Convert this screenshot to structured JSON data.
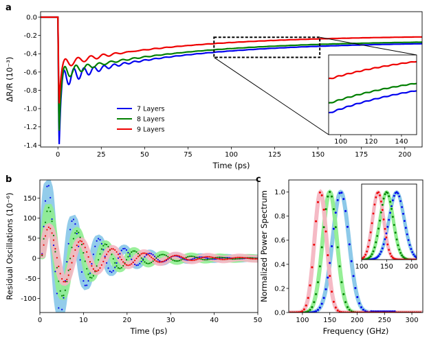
{
  "panels": {
    "a": {
      "letter": "a"
    },
    "b": {
      "letter": "b"
    },
    "c": {
      "letter": "c"
    }
  },
  "chart_data": [
    {
      "panel": "a",
      "type": "line",
      "xlabel": "Time (ps)",
      "ylabel": "ΔR/R (10⁻³)",
      "xlim": [
        -10,
        210
      ],
      "ylim": [
        -1.42,
        0.06
      ],
      "xticks": [
        "0",
        "25",
        "50",
        "75",
        "100",
        "125",
        "150",
        "175",
        "200"
      ],
      "yticks": [
        "0.0",
        "-0.2",
        "-0.4",
        "-0.6",
        "-0.8",
        "-1.0",
        "-1.2",
        "-1.4"
      ],
      "legend_position": "lower-left",
      "series": [
        {
          "name": "7 Layers",
          "color": "#0000ee",
          "min": -1.37,
          "plateau": -0.68,
          "end": -0.27,
          "osc_amp": 0.13,
          "period": 5.8,
          "decay": 14
        },
        {
          "name": "8 Layers",
          "color": "#007f00",
          "min": -1.24,
          "plateau": -0.62,
          "end": -0.255,
          "osc_amp": 0.1,
          "period": 6.6,
          "decay": 14
        },
        {
          "name": "9 Layers",
          "color": "#ee0000",
          "min": -0.94,
          "plateau": -0.52,
          "end": -0.2,
          "osc_amp": 0.07,
          "period": 7.3,
          "decay": 16
        }
      ],
      "zoom_box": {
        "x": [
          90,
          151
        ],
        "y": [
          -0.44,
          -0.22
        ]
      },
      "inset": {
        "xlim": [
          92,
          150
        ],
        "xticks": [
          "100",
          "120",
          "140"
        ]
      }
    },
    {
      "panel": "b",
      "type": "line",
      "xlabel": "Time (ps)",
      "ylabel": "Residual Oscillations (10⁻⁶)",
      "xlim": [
        0,
        50
      ],
      "ylim": [
        -135,
        195
      ],
      "xticks": [
        "0",
        "10",
        "20",
        "30",
        "40",
        "50"
      ],
      "yticks": [
        "150",
        "100",
        "50",
        "0",
        "-50",
        "-100"
      ],
      "series": [
        {
          "name": "7 Layers",
          "color": "#0000ee",
          "band": "#87c6e8",
          "amp": 240,
          "period": 5.85,
          "phase": 1.8,
          "decay": 8.5
        },
        {
          "name": "8 Layers",
          "color": "#007f00",
          "band": "#90ee90",
          "amp": 160,
          "period": 6.55,
          "phase": 1.75,
          "decay": 10
        },
        {
          "name": "9 Layers",
          "color": "#ee0000",
          "band": "#f4b6c2",
          "amp": 95,
          "period": 7.3,
          "phase": 1.6,
          "decay": 12
        }
      ]
    },
    {
      "panel": "c",
      "type": "line",
      "xlabel": "Frequency (GHz)",
      "ylabel": "Normalized Power Spectrum",
      "xlim": [
        75,
        320
      ],
      "ylim": [
        0,
        1.1
      ],
      "xticks": [
        "100",
        "150",
        "200",
        "250",
        "300"
      ],
      "yticks": [
        "0.0",
        "0.2",
        "0.4",
        "0.6",
        "0.8",
        "1.0"
      ],
      "series": [
        {
          "name": "7 Layers",
          "color": "#0000ee",
          "band": "#87c6e8",
          "center": 170,
          "sigma": 15
        },
        {
          "name": "8 Layers",
          "color": "#007f00",
          "band": "#90ee90",
          "center": 150,
          "sigma": 13
        },
        {
          "name": "9 Layers",
          "color": "#ee0000",
          "band": "#f4b6c2",
          "center": 133,
          "sigma": 11
        }
      ],
      "inset": {
        "xlim": [
          100,
          210
        ],
        "xticks": [
          "100",
          "150",
          "200"
        ]
      }
    }
  ]
}
